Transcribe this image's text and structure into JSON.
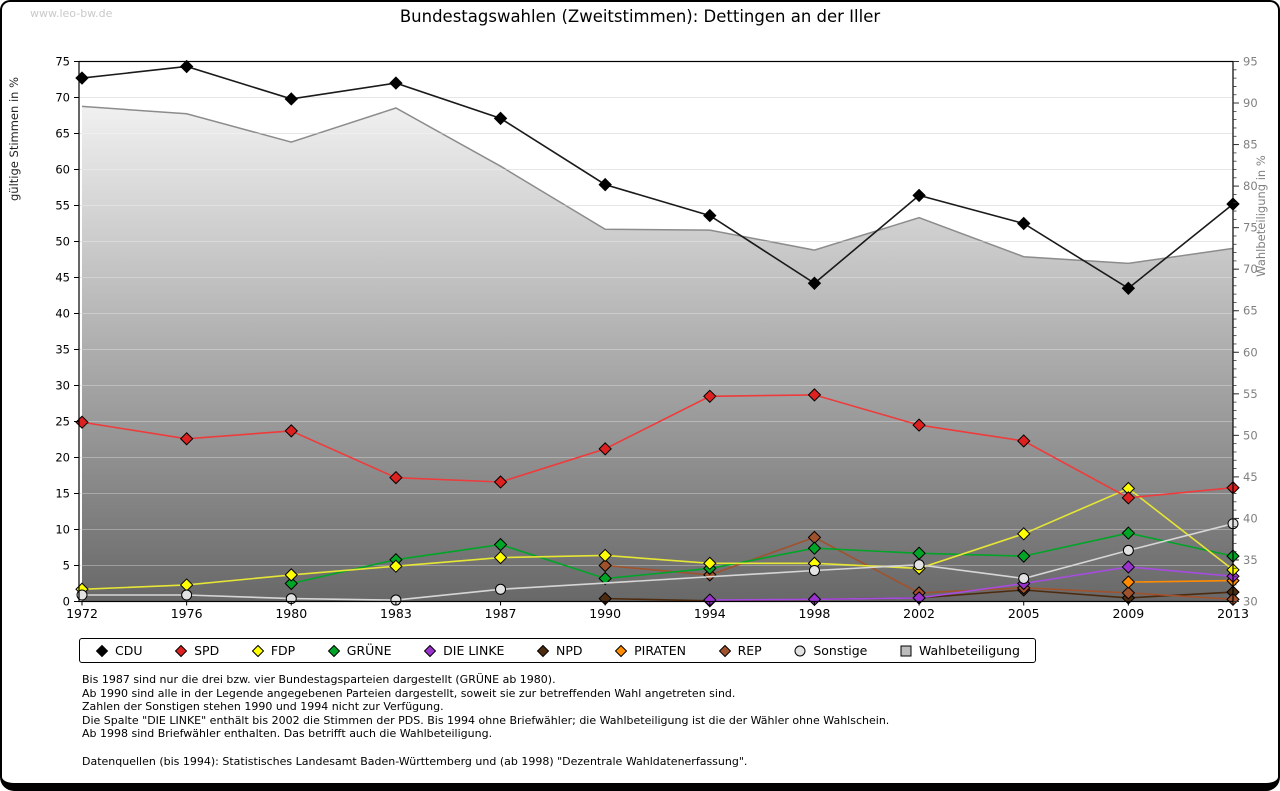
{
  "watermark": "www.leo-bw.de",
  "title": "Bundestagswahlen (Zweitstimmen): Dettingen an der Iller",
  "chart_data": {
    "type": "line",
    "x_categories": [
      "1972",
      "1976",
      "1980",
      "1983",
      "1987",
      "1990",
      "1994",
      "1998",
      "2002",
      "2005",
      "2009",
      "2013"
    ],
    "left_axis": {
      "label": "gültige Stimmen in %",
      "min": 0,
      "max": 75,
      "tick_step": 5
    },
    "right_axis": {
      "label": "Wahlbeteiligung in %",
      "min": 30,
      "max": 95,
      "tick_step": 5,
      "minor_step": 1
    },
    "grid": true,
    "legend_position": "bottom",
    "series": [
      {
        "name": "CDU",
        "axis": "left",
        "marker": "diamond",
        "color": "#000000",
        "line_color": "#1a1a1a",
        "values": [
          72.7,
          74.3,
          69.8,
          72.0,
          67.1,
          57.9,
          53.6,
          44.2,
          56.4,
          52.5,
          43.5,
          55.2
        ]
      },
      {
        "name": "SPD",
        "axis": "left",
        "marker": "diamond",
        "color": "#dd2020",
        "line_color": "#ee3b3b",
        "values": [
          24.9,
          22.6,
          23.7,
          17.2,
          16.6,
          21.2,
          28.5,
          28.7,
          24.5,
          22.3,
          14.4,
          15.8
        ]
      },
      {
        "name": "FDP",
        "axis": "left",
        "marker": "diamond",
        "color": "#ffff00",
        "line_color": "#e6e635",
        "values": [
          1.7,
          2.3,
          3.7,
          4.9,
          6.1,
          6.4,
          5.3,
          5.3,
          4.6,
          9.4,
          15.7,
          4.4
        ]
      },
      {
        "name": "GRÜNE",
        "axis": "left",
        "marker": "diamond",
        "color": "#00a527",
        "line_color": "#00a527",
        "values": [
          null,
          null,
          2.5,
          5.8,
          7.9,
          3.2,
          4.6,
          7.4,
          6.7,
          6.3,
          9.5,
          6.3
        ]
      },
      {
        "name": "DIE LINKE",
        "axis": "left",
        "marker": "diamond",
        "color": "#9933cc",
        "line_color": "#a64ce0",
        "values": [
          null,
          null,
          null,
          null,
          null,
          null,
          0.2,
          0.3,
          0.5,
          2.5,
          4.8,
          3.5
        ]
      },
      {
        "name": "NPD",
        "axis": "left",
        "marker": "diamond",
        "color": "#4d2b0f",
        "line_color": "#4d2b0f",
        "values": [
          null,
          null,
          null,
          null,
          null,
          0.4,
          0.1,
          0.3,
          0.5,
          1.6,
          0.5,
          1.3
        ]
      },
      {
        "name": "PIRATEN",
        "axis": "left",
        "marker": "diamond",
        "color": "#ff8c00",
        "line_color": "#ff8c00",
        "values": [
          null,
          null,
          null,
          null,
          null,
          null,
          null,
          null,
          null,
          null,
          2.7,
          2.9
        ]
      },
      {
        "name": "REP",
        "axis": "left",
        "marker": "diamond",
        "color": "#a0522d",
        "line_color": "#a0522d",
        "values": [
          null,
          null,
          null,
          null,
          null,
          5.0,
          3.7,
          8.9,
          1.2,
          1.9,
          1.2,
          0.3
        ]
      },
      {
        "name": "Sonstige",
        "axis": "left",
        "marker": "circle",
        "color": "#e2e2e2",
        "line_color": "#d6d6d6",
        "connect_gaps": true,
        "values": [
          0.9,
          0.9,
          0.4,
          0.2,
          1.7,
          null,
          null,
          4.3,
          5.1,
          3.2,
          7.1,
          10.8
        ]
      },
      {
        "name": "Wahlbeteiligung",
        "axis": "right",
        "type": "area",
        "marker": "square",
        "color": "#bcbcbc",
        "line_color": "#8c8c8c",
        "area_gradient": [
          "#fdfdfd",
          "#686868"
        ],
        "values": [
          89.6,
          88.7,
          85.3,
          89.4,
          82.4,
          74.8,
          74.7,
          72.3,
          76.2,
          71.5,
          70.7,
          72.5
        ]
      }
    ]
  },
  "footnotes": [
    "Bis 1987 sind nur die drei bzw. vier Bundestagsparteien dargestellt (GRÜNE ab 1980).",
    "Ab 1990 sind alle in der Legende angegebenen Parteien dargestellt, soweit sie zur betreffenden Wahl angetreten sind.",
    "Zahlen der Sonstigen stehen 1990 und 1994 nicht zur Verfügung.",
    "Die Spalte \"DIE LINKE\" enthält bis 2002 die Stimmen der PDS. Bis 1994 ohne Briefwähler; die Wahlbeteiligung ist die der Wähler ohne Wahlschein.",
    "Ab 1998 sind Briefwähler enthalten. Das betrifft auch die Wahlbeteiligung.",
    "",
    "Datenquellen (bis 1994): Statistisches Landesamt Baden-Württemberg und (ab 1998) \"Dezentrale Wahldatenerfassung\"."
  ]
}
